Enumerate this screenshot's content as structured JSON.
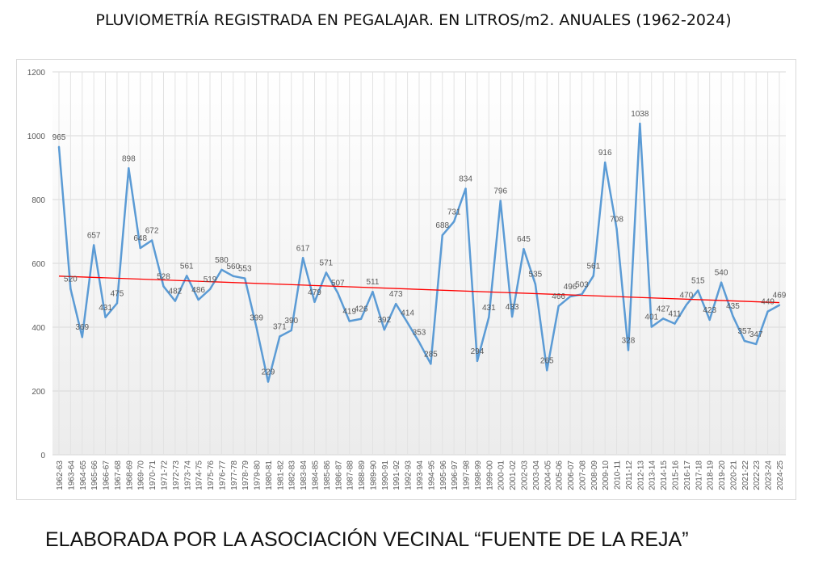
{
  "header": {
    "title": "PLUVIOMETRÍA REGISTRADA EN PEGALAJAR. EN LITROS/m2. ANUALES (1962-2024)"
  },
  "footer": {
    "text": "ELABORADA POR LA ASOCIACIÓN VECINAL “FUENTE DE LA REJA”"
  },
  "chart_data": {
    "type": "line",
    "title": "PLUVIOMETRÍA REGISTRADA EN PEGALAJAR. EN LITROS/m2. ANUALES (1962-2024)",
    "xlabel": "",
    "ylabel": "",
    "ylim": [
      0,
      1200
    ],
    "yticks": [
      0,
      200,
      400,
      600,
      800,
      1000,
      1200
    ],
    "grid": true,
    "colors": {
      "series": "#5b9bd5",
      "trend": "#ff0000"
    },
    "categories": [
      "1962-63",
      "1963-64",
      "1964-65",
      "1965-66",
      "1966-67",
      "1967-68",
      "1968-69",
      "1969-70",
      "1970-71",
      "1971-72",
      "1972-73",
      "1973-74",
      "1974-75",
      "1975-76",
      "1976-77",
      "1977-78",
      "1978-79",
      "1979-80",
      "1980-81",
      "1981-82",
      "1982-83",
      "1983-84",
      "1984-85",
      "1985-86",
      "1986-87",
      "1987-88",
      "1988-89",
      "1989-90",
      "1990-91",
      "1991-92",
      "1992-93",
      "1993-94",
      "1994-95",
      "1995-96",
      "1996-97",
      "1997-98",
      "1998-99",
      "1999-00",
      "2000-01",
      "2001-02",
      "2002-03",
      "2003-04",
      "2004-05",
      "2005-06",
      "2006-07",
      "2007-08",
      "2008-09",
      "2009-10",
      "2010-11",
      "2011-12",
      "2012-13",
      "2013-14",
      "2014-15",
      "2015-16",
      "2016-17",
      "2017-18",
      "2018-19",
      "2019-20",
      "2020-21",
      "2021-22",
      "2022-23",
      "2023-24",
      "2024-25"
    ],
    "values": [
      965,
      520,
      369,
      657,
      431,
      475,
      898,
      648,
      672,
      528,
      482,
      561,
      486,
      519,
      580,
      560,
      553,
      399,
      229,
      371,
      390,
      617,
      479,
      571,
      507,
      419,
      426,
      511,
      392,
      473,
      414,
      353,
      285,
      688,
      731,
      834,
      294,
      431,
      796,
      433,
      645,
      535,
      265,
      466,
      496,
      503,
      561,
      916,
      708,
      328,
      1038,
      401,
      427,
      411,
      470,
      515,
      423,
      540,
      435,
      357,
      347,
      449,
      469
    ],
    "trendline": {
      "type": "linear",
      "start": 560,
      "end": 477
    }
  }
}
